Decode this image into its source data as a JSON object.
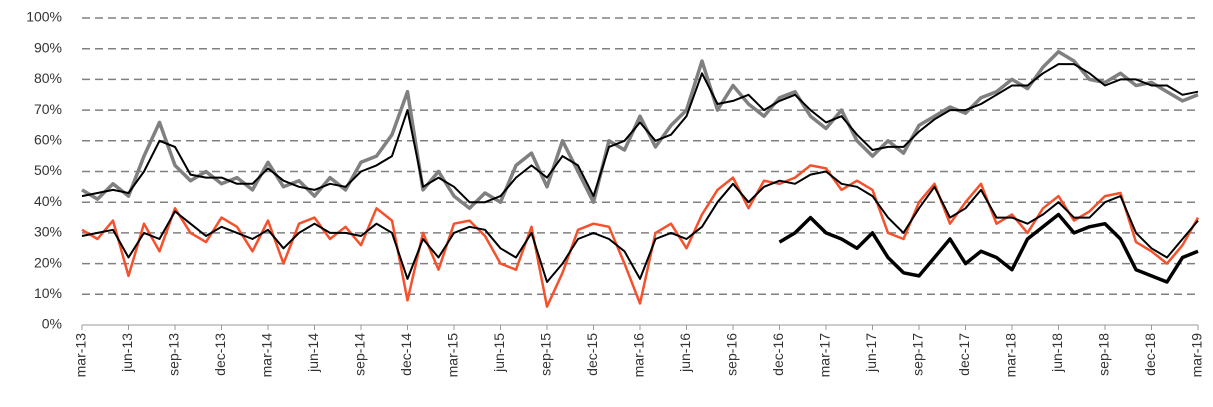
{
  "chart_data": {
    "type": "line",
    "categories": [
      "mar-13",
      null,
      null,
      "jun-13",
      null,
      null,
      "sep-13",
      null,
      null,
      "dec-13",
      null,
      null,
      "mar-14",
      null,
      null,
      "jun-14",
      null,
      null,
      "sep-14",
      null,
      null,
      "dec-14",
      null,
      null,
      "mar-15",
      null,
      null,
      "jun-15",
      null,
      null,
      "sep-15",
      null,
      null,
      "dec-15",
      null,
      null,
      "mar-16",
      null,
      null,
      "jun-16",
      null,
      null,
      "sep-16",
      null,
      null,
      "dec-16",
      null,
      null,
      "mar-17",
      null,
      null,
      "jun-17",
      null,
      null,
      "sep-17",
      null,
      null,
      "dec-17",
      null,
      null,
      "mar-18",
      null,
      null,
      "jun-18",
      null,
      null,
      "sep-18",
      null,
      null,
      "dec-18",
      null,
      null,
      "mar-19"
    ],
    "series": [
      {
        "color": "#808080",
        "values": [
          44,
          41,
          46,
          42,
          55,
          66,
          52,
          47,
          50,
          46,
          48,
          44,
          53,
          45,
          47,
          42,
          48,
          44,
          53,
          55,
          62,
          76,
          44,
          50,
          42,
          38,
          43,
          40,
          52,
          56,
          45,
          60,
          50,
          40,
          60,
          57,
          68,
          58,
          65,
          70,
          86,
          70,
          78,
          72,
          68,
          74,
          76,
          68,
          64,
          70,
          60,
          55,
          60,
          56,
          65,
          68,
          71,
          69,
          74,
          76,
          80,
          77,
          84,
          89,
          86,
          80,
          79,
          82,
          78,
          79,
          76,
          73,
          75
        ]
      },
      {
        "color": "#f4512c",
        "values": [
          31,
          28,
          34,
          16,
          33,
          24,
          38,
          30,
          27,
          35,
          32,
          24,
          34,
          20,
          33,
          35,
          28,
          32,
          26,
          38,
          34,
          8,
          30,
          18,
          33,
          34,
          29,
          20,
          18,
          32,
          6,
          17,
          31,
          33,
          32,
          20,
          7,
          30,
          33,
          25,
          36,
          44,
          48,
          38,
          47,
          46,
          48,
          52,
          51,
          44,
          47,
          44,
          30,
          28,
          40,
          46,
          33,
          40,
          46,
          33,
          36,
          30,
          38,
          42,
          34,
          37,
          42,
          43,
          27,
          24,
          20,
          26,
          35
        ]
      },
      {
        "color": "#000000",
        "values": [
          42,
          43,
          44,
          43,
          50,
          60,
          58,
          49,
          48,
          48,
          46,
          46,
          51,
          47,
          45,
          44,
          46,
          45,
          50,
          52,
          55,
          70,
          45,
          48,
          45,
          40,
          40,
          42,
          48,
          52,
          48,
          55,
          52,
          42,
          58,
          60,
          66,
          60,
          62,
          68,
          82,
          72,
          73,
          75,
          70,
          73,
          75,
          70,
          66,
          68,
          62,
          57,
          58,
          58,
          63,
          67,
          70,
          70,
          72,
          75,
          78,
          78,
          82,
          85,
          85,
          82,
          78,
          80,
          80,
          78,
          78,
          75,
          76
        ]
      },
      {
        "color": "#000000",
        "values": [
          29,
          30,
          31,
          22,
          30,
          28,
          37,
          33,
          29,
          32,
          30,
          28,
          31,
          25,
          30,
          33,
          30,
          30,
          29,
          33,
          30,
          15,
          28,
          22,
          30,
          32,
          31,
          25,
          22,
          30,
          14,
          20,
          28,
          30,
          28,
          24,
          15,
          28,
          30,
          28,
          32,
          40,
          46,
          40,
          45,
          47,
          46,
          49,
          50,
          46,
          45,
          42,
          35,
          30,
          38,
          45,
          35,
          38,
          44,
          35,
          35,
          33,
          36,
          40,
          35,
          35,
          40,
          42,
          30,
          25,
          22,
          28,
          34
        ]
      },
      {
        "color": "#000000",
        "values": [
          null,
          null,
          null,
          null,
          null,
          null,
          null,
          null,
          null,
          null,
          null,
          null,
          null,
          null,
          null,
          null,
          null,
          null,
          null,
          null,
          null,
          null,
          null,
          null,
          null,
          null,
          null,
          null,
          null,
          null,
          null,
          null,
          null,
          null,
          null,
          null,
          null,
          null,
          null,
          null,
          null,
          null,
          null,
          null,
          null,
          27,
          30,
          35,
          30,
          28,
          25,
          30,
          22,
          17,
          16,
          22,
          28,
          20,
          24,
          22,
          18,
          28,
          32,
          36,
          30,
          32,
          33,
          28,
          18,
          16,
          14,
          22,
          24
        ]
      }
    ],
    "ylim": [
      0,
      100
    ],
    "yticks": [
      {
        "value": 0,
        "label": "0%"
      },
      {
        "value": 10,
        "label": "10%"
      },
      {
        "value": 20,
        "label": "20%"
      },
      {
        "value": 30,
        "label": "30%"
      },
      {
        "value": 40,
        "label": "40%"
      },
      {
        "value": 50,
        "label": "50%"
      },
      {
        "value": 60,
        "label": "60%"
      },
      {
        "value": 70,
        "label": "70%"
      },
      {
        "value": 80,
        "label": "80%"
      },
      {
        "value": 90,
        "label": "90%"
      },
      {
        "value": 100,
        "label": "100%"
      }
    ],
    "grid": true
  }
}
